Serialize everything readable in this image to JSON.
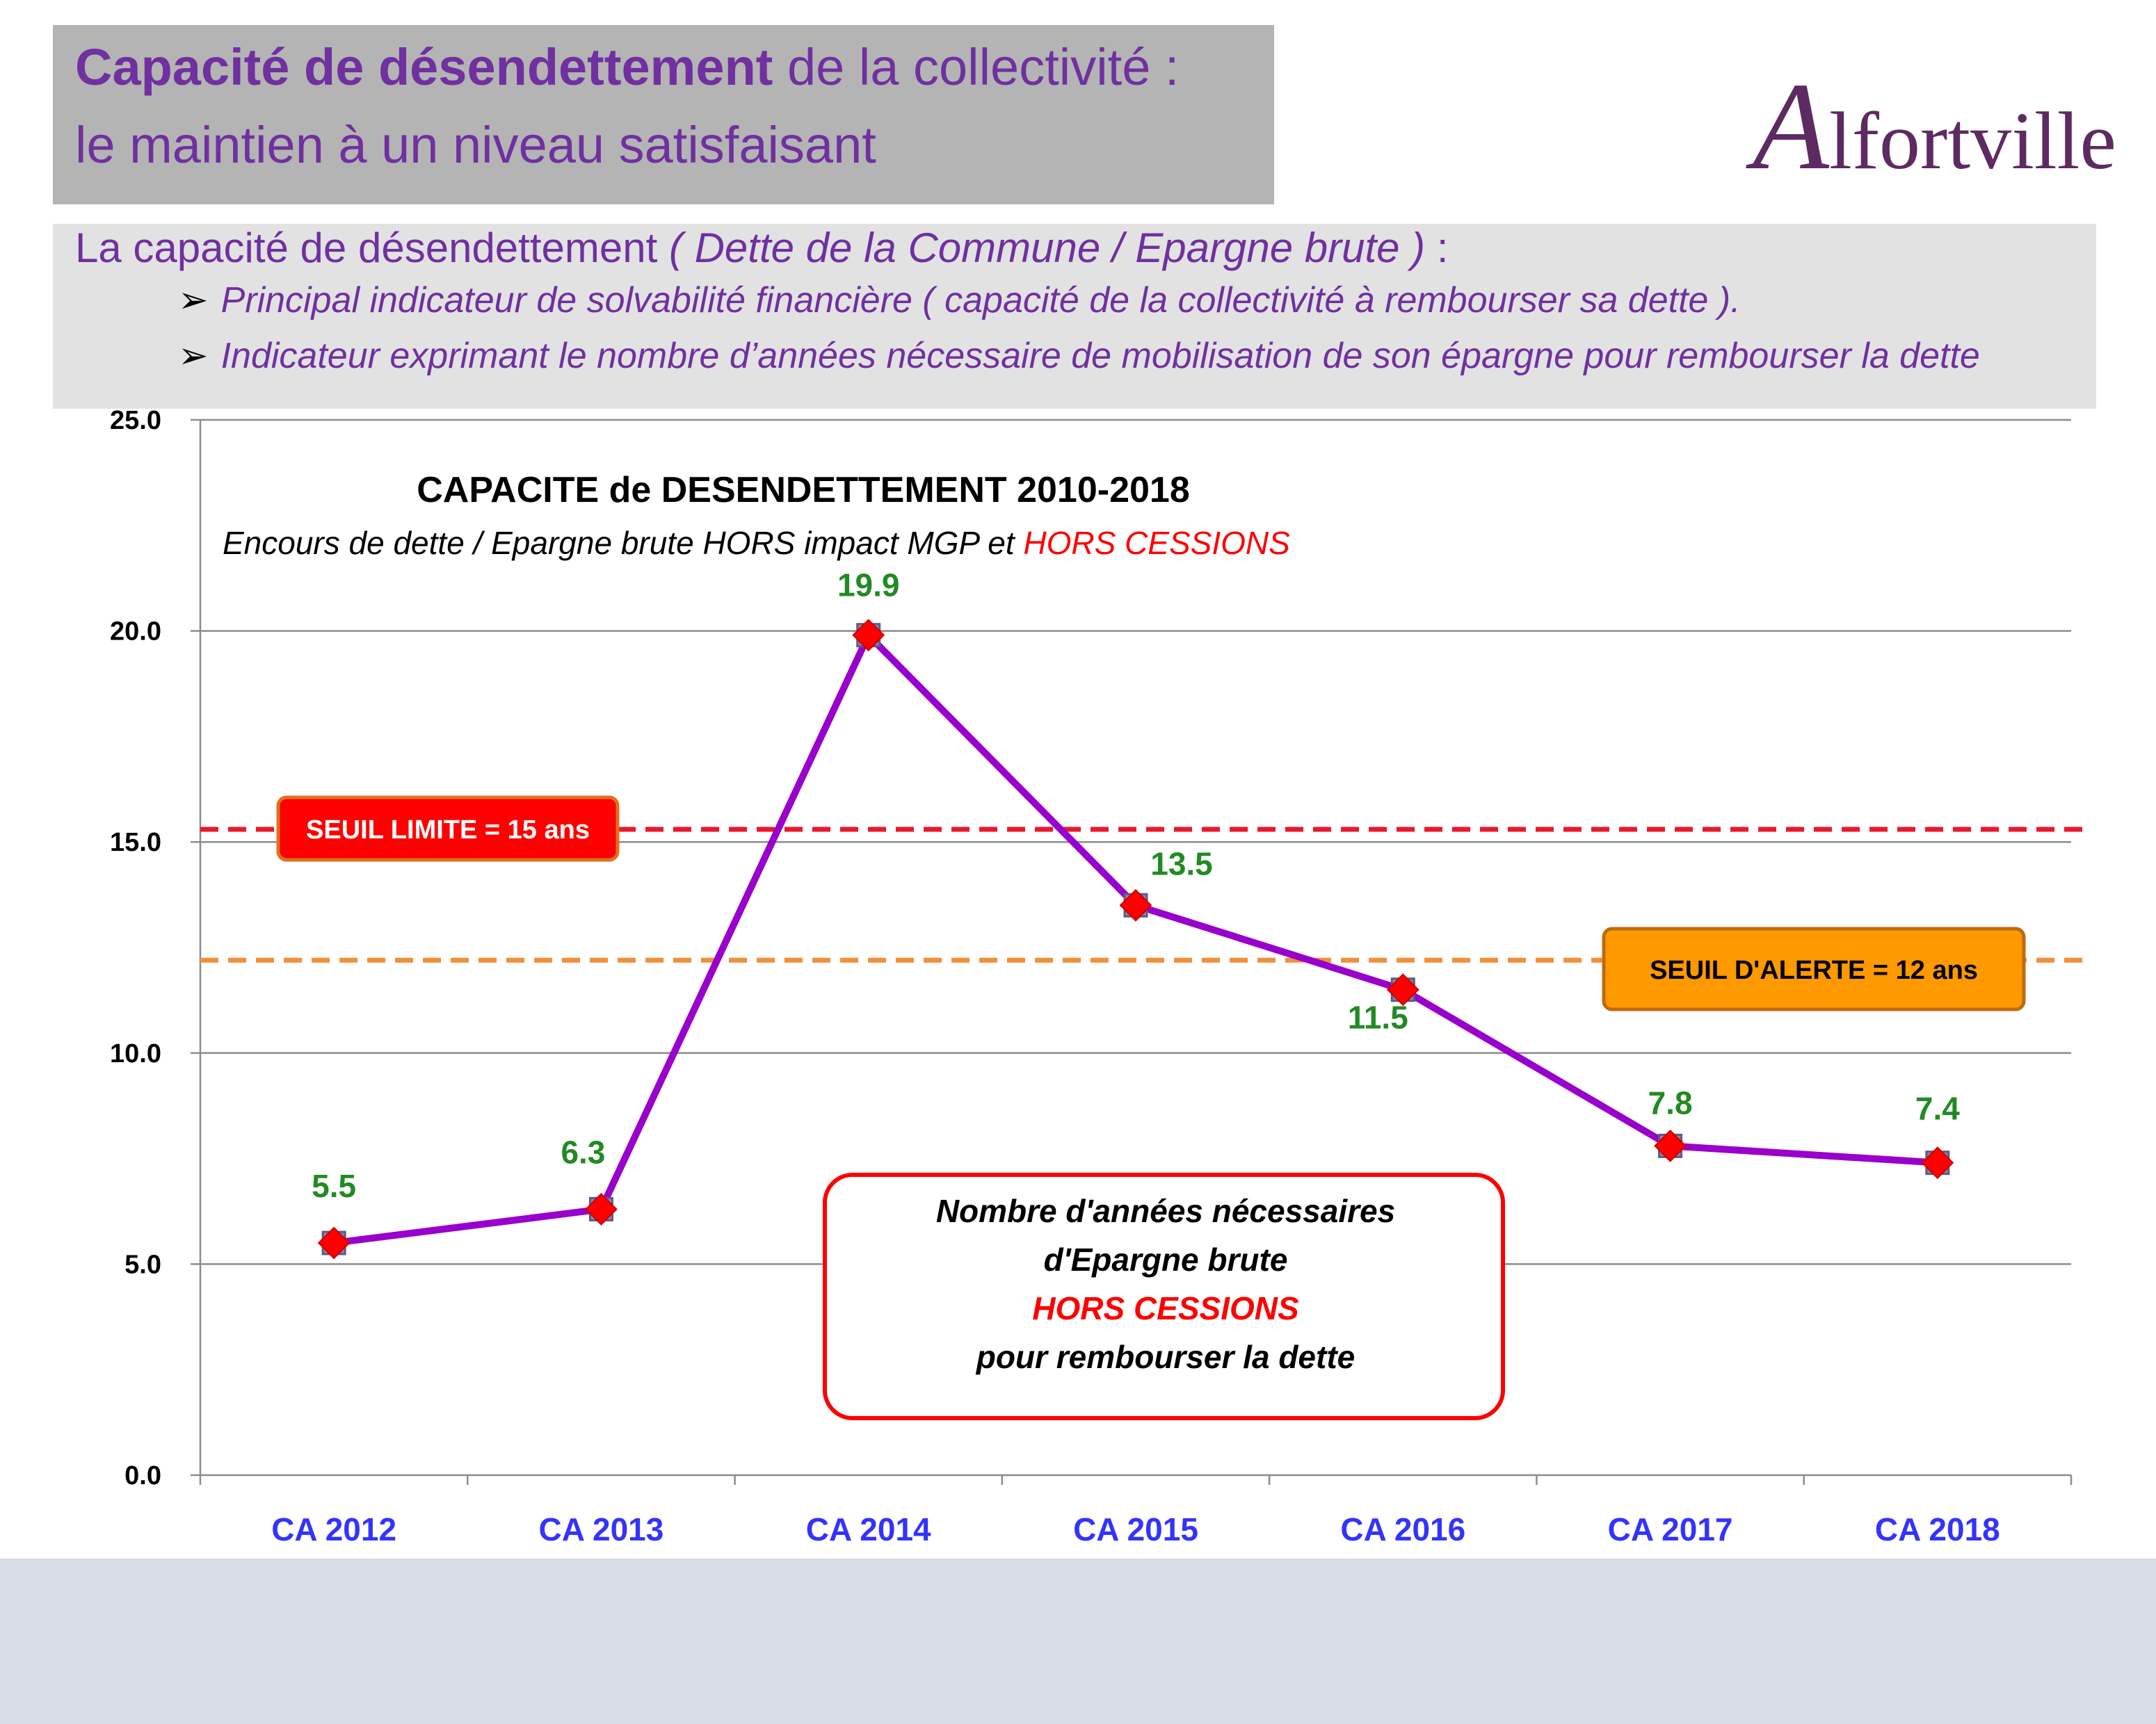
{
  "header": {
    "title_bold": "Capacité de désendettement",
    "title_rest": " de la collectivité :",
    "title_line2": "le maintien à un niveau satisfaisant"
  },
  "logo": {
    "initial": "A",
    "rest": "lfortville"
  },
  "intro": {
    "heading_plain": "La capacité de désendettement ",
    "heading_italic": "( Dette de la Commune / Epargne brute )",
    "heading_tail": "  :",
    "bullets": [
      "Principal indicateur de solvabilité financière ( capacité de la collectivité à rembourser sa dette ).",
      "Indicateur exprimant le nombre d’années nécessaire de mobilisation de son épargne pour rembourser la dette"
    ],
    "bullet_icon": "arrowhead-bullet-icon"
  },
  "chart_data": {
    "type": "line",
    "title": "CAPACITE de DESENDETTEMENT 2010-2018",
    "subtitle_plain": "Encours de dette / Epargne brute HORS impact MGP et ",
    "subtitle_red": "HORS CESSIONS",
    "categories": [
      "CA 2012",
      "CA 2013",
      "CA 2014",
      "CA 2015",
      "CA 2016",
      "CA 2017",
      "CA 2018"
    ],
    "series": [
      {
        "values": [
          5.5,
          6.3,
          19.9,
          13.5,
          11.5,
          7.8,
          7.4
        ],
        "color": "#9900cc",
        "marker_color": "#ff0000"
      }
    ],
    "data_labels": [
      "5.5",
      "6.3",
      "19.9",
      "13.5",
      "11.5",
      "7.8",
      "7.4"
    ],
    "yticks": [
      0,
      5,
      10,
      15,
      20,
      25
    ],
    "ytick_labels": [
      "0.0",
      "5.0",
      "10.0",
      "15.0",
      "20.0",
      "25.0"
    ],
    "ylim": [
      0,
      25
    ],
    "grid": true,
    "thresholds": [
      {
        "label": "SEUIL LIMITE = 15 ans",
        "value": 15.3,
        "color": "#e8192c",
        "box_fill": "#ff0000",
        "text_color": "#ffffff",
        "box_stroke": "#e07020"
      },
      {
        "label": "SEUIL D'ALERTE = 12 ans",
        "value": 12.2,
        "color": "#f0903a",
        "box_fill": "#ff9900",
        "text_color": "#000000",
        "box_stroke": "#c06a10"
      }
    ],
    "annotation": {
      "lines": [
        "Nombre d'années nécessaires",
        "d'Epargne brute",
        "HORS CESSIONS",
        "pour rembourser la dette"
      ],
      "red_line_index": 2,
      "border_color": "#ff0000"
    }
  }
}
